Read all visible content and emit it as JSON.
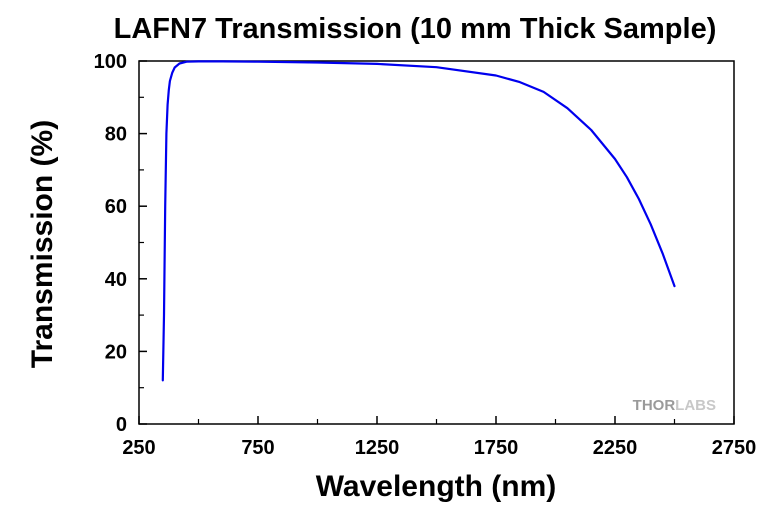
{
  "chart_data": {
    "type": "line",
    "title": "LAFN7 Transmission (10 mm Thick Sample)",
    "xlabel": "Wavelength (nm)",
    "ylabel": "Transmission (%)",
    "xlim": [
      250,
      2750
    ],
    "ylim": [
      0,
      100
    ],
    "xticks": [
      250,
      750,
      1250,
      1750,
      2250,
      2750
    ],
    "yticks": [
      0,
      20,
      40,
      60,
      80,
      100
    ],
    "grid": false,
    "legend": "none",
    "series": [
      {
        "color": "#0000ee",
        "x": [
          350,
          355,
          360,
          365,
          370,
          375,
          380,
          390,
          400,
          420,
          450,
          500,
          600,
          750,
          1000,
          1250,
          1500,
          1750,
          1850,
          1950,
          2050,
          2150,
          2250,
          2300,
          2350,
          2400,
          2450,
          2500
        ],
        "y": [
          12,
          30,
          60,
          80,
          88,
          92,
          94.5,
          96.8,
          98.2,
          99.3,
          99.8,
          99.9,
          99.9,
          99.8,
          99.6,
          99.2,
          98.3,
          96,
          94.2,
          91.5,
          87,
          81,
          73,
          68,
          62,
          55,
          47,
          38
        ]
      }
    ]
  },
  "watermark": {
    "part1": "THOR",
    "part2": "LABS"
  }
}
